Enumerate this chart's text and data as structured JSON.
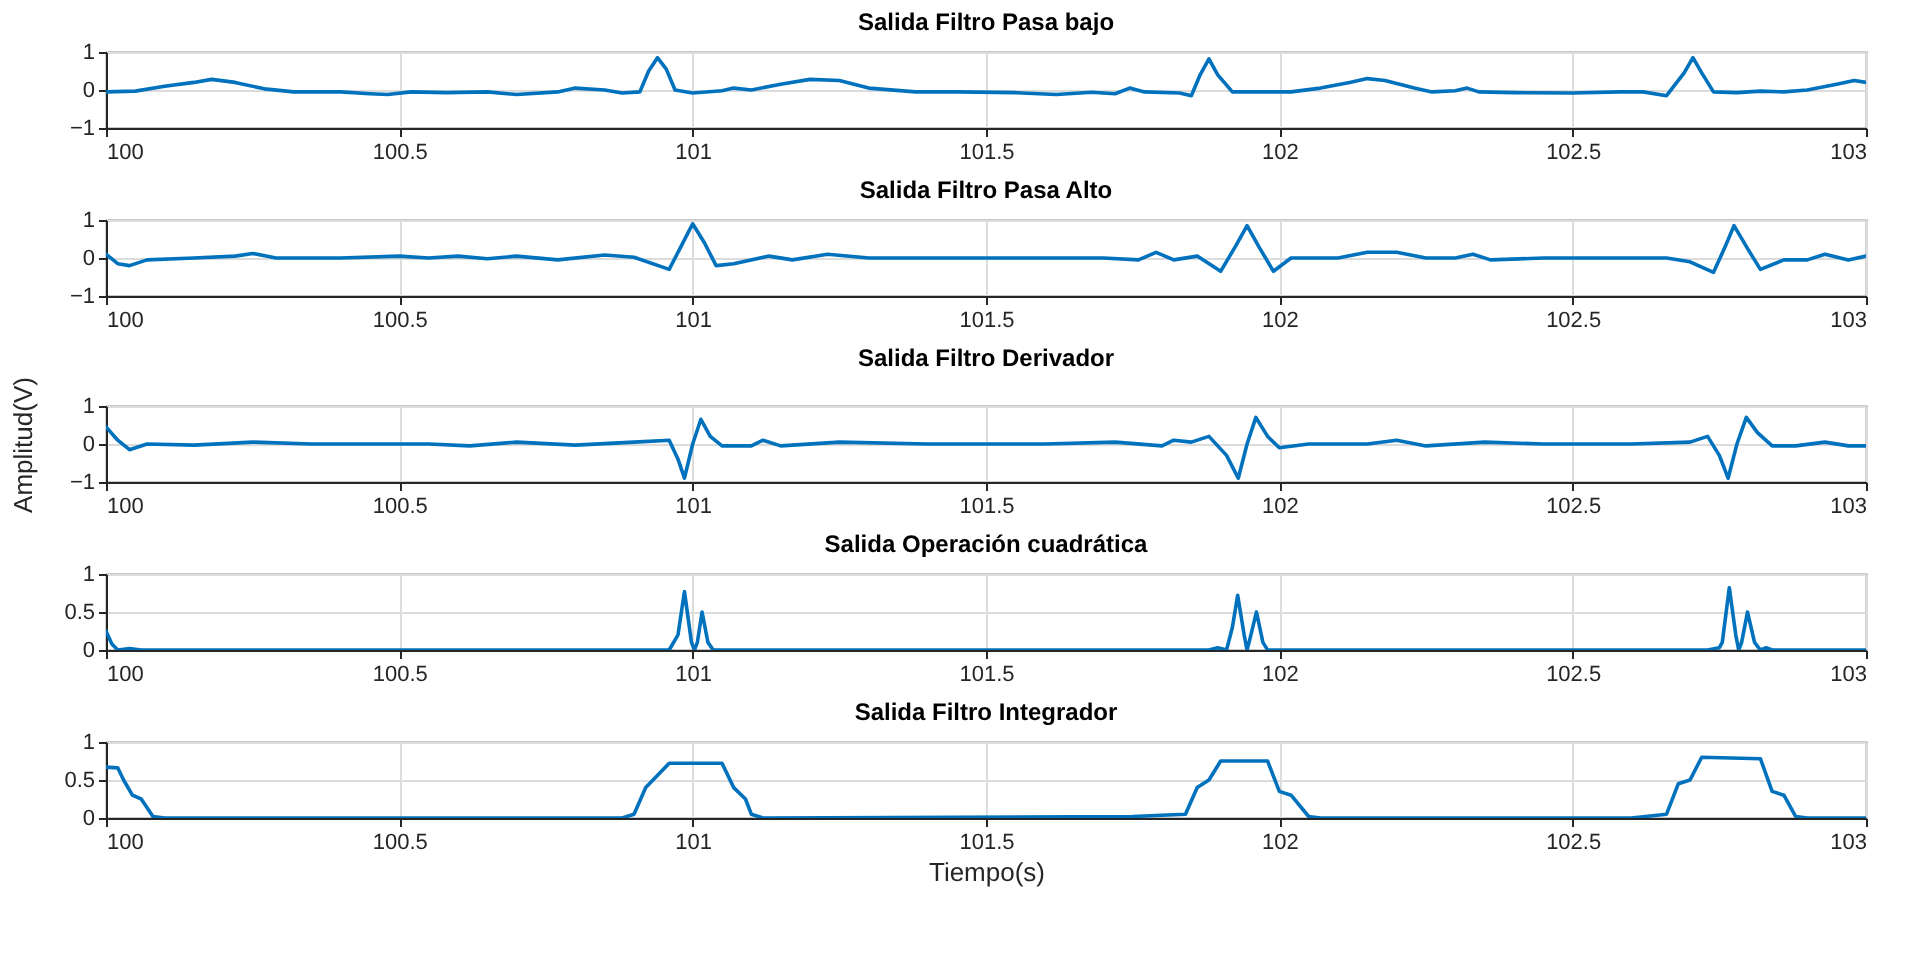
{
  "chart_data": [
    {
      "type": "line",
      "title": "Salida Filtro Pasa bajo",
      "xlim": [
        100,
        103
      ],
      "xticks": [
        100,
        100.5,
        101,
        101.5,
        102,
        102.5,
        103
      ],
      "ylim": [
        -1,
        1
      ],
      "yticks": [
        -1,
        0,
        1
      ],
      "grid": true,
      "x": [
        100,
        100.05,
        100.1,
        100.15,
        100.18,
        100.22,
        100.27,
        100.32,
        100.4,
        100.45,
        100.48,
        100.52,
        100.58,
        100.65,
        100.7,
        100.77,
        100.8,
        100.85,
        100.88,
        100.91,
        100.925,
        100.94,
        100.955,
        100.97,
        101.0,
        101.05,
        101.07,
        101.1,
        101.15,
        101.2,
        101.25,
        101.3,
        101.38,
        101.45,
        101.55,
        101.62,
        101.68,
        101.72,
        101.745,
        101.77,
        101.83,
        101.85,
        101.865,
        101.88,
        101.895,
        101.92,
        101.97,
        102.02,
        102.07,
        102.12,
        102.15,
        102.18,
        102.23,
        102.26,
        102.3,
        102.32,
        102.34,
        102.4,
        102.5,
        102.58,
        102.62,
        102.66,
        102.69,
        102.705,
        102.72,
        102.74,
        102.78,
        102.82,
        102.86,
        102.9,
        102.95,
        102.98,
        103
      ],
      "series": [
        {
          "color": "#0072bd",
          "values": [
            -0.05,
            -0.03,
            0.1,
            0.2,
            0.28,
            0.2,
            0.03,
            -0.05,
            -0.05,
            -0.1,
            -0.12,
            -0.05,
            -0.07,
            -0.05,
            -0.12,
            -0.05,
            0.05,
            0,
            -0.08,
            -0.05,
            0.5,
            0.85,
            0.55,
            0,
            -0.08,
            -0.02,
            0.05,
            0,
            0.15,
            0.28,
            0.25,
            0.05,
            -0.05,
            -0.05,
            -0.07,
            -0.12,
            -0.06,
            -0.1,
            0.05,
            -0.05,
            -0.08,
            -0.15,
            0.4,
            0.82,
            0.4,
            -0.05,
            -0.05,
            -0.05,
            0.05,
            0.2,
            0.3,
            0.25,
            0.05,
            -0.05,
            -0.02,
            0.05,
            -0.05,
            -0.07,
            -0.08,
            -0.05,
            -0.05,
            -0.15,
            0.45,
            0.85,
            0.45,
            -0.05,
            -0.07,
            -0.03,
            -0.05,
            0,
            0.15,
            0.25,
            0.2
          ]
        }
      ]
    },
    {
      "type": "line",
      "title": "Salida Filtro Pasa Alto",
      "xlim": [
        100,
        103
      ],
      "xticks": [
        100,
        100.5,
        101,
        101.5,
        102,
        102.5,
        103
      ],
      "ylim": [
        -1,
        1
      ],
      "yticks": [
        -1,
        0,
        1
      ],
      "grid": true,
      "x": [
        100,
        100.02,
        100.04,
        100.07,
        100.15,
        100.22,
        100.25,
        100.29,
        100.4,
        100.5,
        100.55,
        100.6,
        100.65,
        100.7,
        100.77,
        100.85,
        100.9,
        100.96,
        100.98,
        101.0,
        101.02,
        101.04,
        101.07,
        101.13,
        101.17,
        101.23,
        101.3,
        101.45,
        101.6,
        101.7,
        101.76,
        101.79,
        101.82,
        101.86,
        101.9,
        101.925,
        101.945,
        101.965,
        101.99,
        102.02,
        102.1,
        102.15,
        102.2,
        102.25,
        102.3,
        102.33,
        102.36,
        102.45,
        102.6,
        102.66,
        102.7,
        102.74,
        102.76,
        102.775,
        102.8,
        102.82,
        102.86,
        102.9,
        102.93,
        102.97,
        103
      ],
      "series": [
        {
          "color": "#0072bd",
          "values": [
            0.1,
            -0.15,
            -0.2,
            -0.05,
            0,
            0.05,
            0.12,
            0,
            0,
            0.05,
            0,
            0.05,
            -0.02,
            0.05,
            -0.05,
            0.08,
            0.02,
            -0.3,
            0.3,
            0.9,
            0.4,
            -0.2,
            -0.15,
            0.05,
            -0.05,
            0.1,
            0,
            0,
            0,
            0,
            -0.05,
            0.15,
            -0.05,
            0.05,
            -0.35,
            0.3,
            0.85,
            0.3,
            -0.35,
            0,
            0,
            0.15,
            0.15,
            0,
            0,
            0.1,
            -0.05,
            0,
            0,
            0,
            -0.1,
            -0.38,
            0.3,
            0.85,
            0.2,
            -0.3,
            -0.05,
            -0.05,
            0.1,
            -0.05,
            0.05
          ]
        }
      ]
    },
    {
      "type": "line",
      "title": "Salida Filtro Derivador",
      "ylabel": "Amplitud(V)",
      "xlim": [
        100,
        103
      ],
      "xticks": [
        100,
        100.5,
        101,
        101.5,
        102,
        102.5,
        103
      ],
      "ylim": [
        -1,
        1
      ],
      "yticks": [
        -1,
        0,
        1
      ],
      "grid": true,
      "x": [
        100,
        100.02,
        100.04,
        100.07,
        100.15,
        100.25,
        100.35,
        100.45,
        100.55,
        100.62,
        100.7,
        100.8,
        100.9,
        100.96,
        100.975,
        100.986,
        101.0,
        101.014,
        101.03,
        101.05,
        101.1,
        101.12,
        101.15,
        101.25,
        101.4,
        101.6,
        101.72,
        101.8,
        101.82,
        101.85,
        101.88,
        101.91,
        101.93,
        101.945,
        101.96,
        101.98,
        102.0,
        102.05,
        102.15,
        102.2,
        102.25,
        102.35,
        102.45,
        102.6,
        102.7,
        102.73,
        102.75,
        102.765,
        102.78,
        102.796,
        102.815,
        102.84,
        102.88,
        102.93,
        102.97,
        103
      ],
      "series": [
        {
          "color": "#0072bd",
          "values": [
            0.45,
            0.1,
            -0.15,
            0,
            -0.03,
            0.05,
            0,
            0,
            0,
            -0.05,
            0.05,
            -0.03,
            0.05,
            0.1,
            -0.4,
            -0.9,
            0,
            0.65,
            0.2,
            -0.05,
            -0.05,
            0.1,
            -0.05,
            0.05,
            0,
            0,
            0.05,
            -0.05,
            0.1,
            0.05,
            0.2,
            -0.3,
            -0.9,
            0,
            0.7,
            0.2,
            -0.1,
            0,
            0,
            0.1,
            -0.05,
            0.05,
            0,
            0,
            0.05,
            0.2,
            -0.3,
            -0.9,
            0,
            0.7,
            0.3,
            -0.05,
            -0.05,
            0.05,
            -0.05,
            -0.05
          ]
        }
      ]
    },
    {
      "type": "line",
      "title": "Salida Operación cuadrática",
      "xlim": [
        100,
        103
      ],
      "xticks": [
        100,
        100.5,
        101,
        101.5,
        102,
        102.5,
        103
      ],
      "ylim": [
        0,
        1
      ],
      "yticks": [
        0,
        0.5,
        1
      ],
      "grid": true,
      "x": [
        100,
        100.01,
        100.02,
        100.04,
        100.06,
        100.96,
        100.975,
        100.986,
        100.998,
        101.003,
        101.008,
        101.016,
        101.026,
        101.035,
        101.8,
        101.88,
        101.895,
        101.91,
        101.92,
        101.929,
        101.94,
        101.945,
        101.95,
        101.961,
        101.972,
        101.98,
        102.73,
        102.75,
        102.755,
        102.767,
        102.778,
        102.783,
        102.788,
        102.798,
        102.81,
        102.82,
        102.83,
        102.84,
        103
      ],
      "series": [
        {
          "color": "#0072bd",
          "values": [
            0.25,
            0.08,
            0,
            0.02,
            0,
            0,
            0.2,
            0.77,
            0.1,
            0,
            0.1,
            0.5,
            0.1,
            0,
            0,
            0,
            0.03,
            0,
            0.3,
            0.72,
            0.2,
            0,
            0.15,
            0.5,
            0.1,
            0,
            0,
            0.03,
            0.1,
            0.82,
            0.2,
            0,
            0.1,
            0.5,
            0.1,
            0,
            0.03,
            0,
            0
          ]
        }
      ]
    },
    {
      "type": "line",
      "title": "Salida Filtro Integrador",
      "xlabel": "Tiempo(s)",
      "xlim": [
        100,
        103
      ],
      "xticks": [
        100,
        100.5,
        101,
        101.5,
        102,
        102.5,
        103
      ],
      "ylim": [
        0,
        1
      ],
      "yticks": [
        0,
        0.5,
        1
      ],
      "grid": true,
      "x": [
        100,
        100.02,
        100.03,
        100.045,
        100.06,
        100.08,
        100.1,
        100.88,
        100.9,
        100.92,
        100.96,
        101.05,
        101.07,
        101.09,
        101.1,
        101.12,
        101.75,
        101.84,
        101.86,
        101.88,
        101.9,
        101.98,
        102.0,
        102.02,
        102.05,
        102.07,
        102.6,
        102.66,
        102.68,
        102.7,
        102.72,
        102.82,
        102.84,
        102.86,
        102.88,
        102.9,
        103
      ],
      "series": [
        {
          "color": "#0072bd",
          "values": [
            0.67,
            0.66,
            0.5,
            0.3,
            0.25,
            0.02,
            0,
            0,
            0.05,
            0.4,
            0.72,
            0.72,
            0.4,
            0.25,
            0.05,
            0,
            0.02,
            0.05,
            0.4,
            0.5,
            0.75,
            0.75,
            0.35,
            0.3,
            0.02,
            0,
            0,
            0.05,
            0.45,
            0.5,
            0.8,
            0.78,
            0.35,
            0.3,
            0.02,
            0,
            0
          ]
        }
      ]
    }
  ]
}
